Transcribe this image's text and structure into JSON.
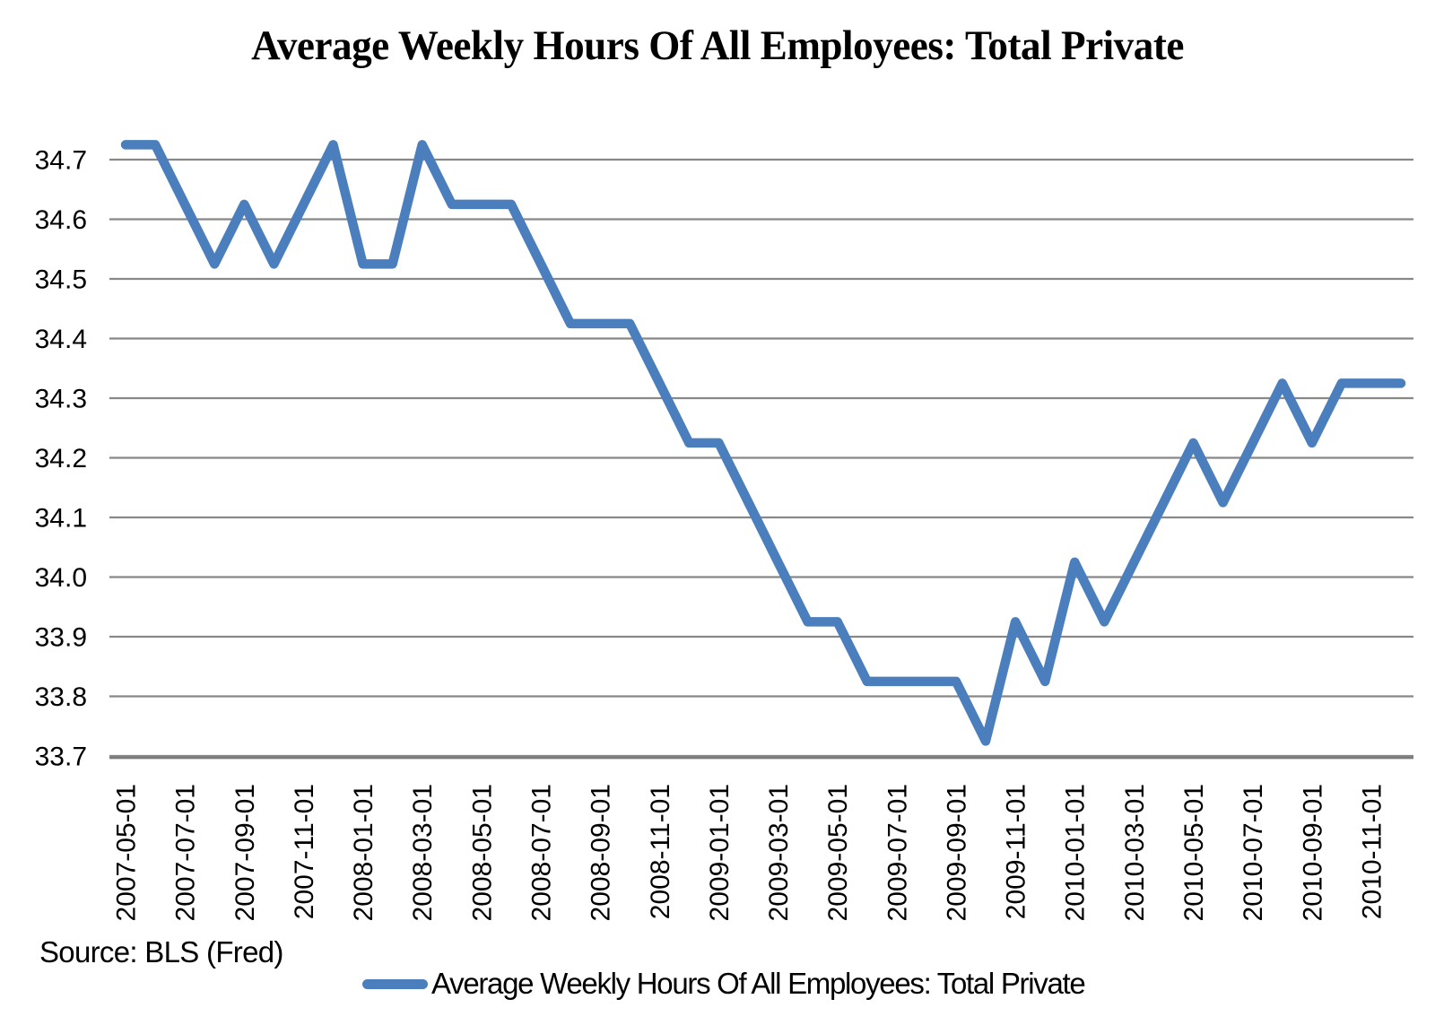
{
  "title": "Average Weekly Hours Of All Employees: Total Private",
  "source_note": "Source: BLS (Fred)",
  "legend": {
    "label": "Average Weekly Hours Of All Employees: Total Private"
  },
  "chart_data": {
    "type": "line",
    "title": "Average Weekly Hours Of All Employees: Total Private",
    "xlabel": "",
    "ylabel": "",
    "x": [
      "2007-05-01",
      "2007-06-01",
      "2007-07-01",
      "2007-08-01",
      "2007-09-01",
      "2007-10-01",
      "2007-11-01",
      "2007-12-01",
      "2008-01-01",
      "2008-02-01",
      "2008-03-01",
      "2008-04-01",
      "2008-05-01",
      "2008-06-01",
      "2008-07-01",
      "2008-08-01",
      "2008-09-01",
      "2008-10-01",
      "2008-11-01",
      "2008-12-01",
      "2009-01-01",
      "2009-02-01",
      "2009-03-01",
      "2009-04-01",
      "2009-05-01",
      "2009-06-01",
      "2009-07-01",
      "2009-08-01",
      "2009-09-01",
      "2009-10-01",
      "2009-11-01",
      "2009-12-01",
      "2010-01-01",
      "2010-02-01",
      "2010-03-01",
      "2010-04-01",
      "2010-05-01",
      "2010-06-01",
      "2010-07-01",
      "2010-08-01",
      "2010-09-01",
      "2010-10-01",
      "2010-11-01",
      "2010-12-01"
    ],
    "values": [
      34.725,
      34.725,
      34.625,
      34.525,
      34.625,
      34.525,
      34.625,
      34.725,
      34.525,
      34.525,
      34.725,
      34.625,
      34.625,
      34.625,
      34.525,
      34.425,
      34.425,
      34.425,
      34.325,
      34.225,
      34.225,
      34.125,
      34.025,
      33.925,
      33.925,
      33.825,
      33.825,
      33.825,
      33.825,
      33.725,
      33.925,
      33.825,
      34.025,
      33.925,
      34.025,
      34.125,
      34.225,
      34.125,
      34.225,
      34.325,
      34.225,
      34.325,
      34.325,
      34.325
    ],
    "series": [
      {
        "name": "Average Weekly Hours Of All Employees: Total Private"
      }
    ],
    "xtick_labels": [
      "2007-05-01",
      "2007-07-01",
      "2007-09-01",
      "2007-11-01",
      "2008-01-01",
      "2008-03-01",
      "2008-05-01",
      "2008-07-01",
      "2008-09-01",
      "2008-11-01",
      "2009-01-01",
      "2009-03-01",
      "2009-05-01",
      "2009-07-01",
      "2009-09-01",
      "2009-11-01",
      "2010-01-01",
      "2010-03-01",
      "2010-05-01",
      "2010-07-01",
      "2010-09-01",
      "2010-11-01"
    ],
    "ytick_labels": [
      "34.7",
      "34.6",
      "34.5",
      "34.4",
      "34.3",
      "34.2",
      "34.1",
      "34.0",
      "33.9",
      "33.8",
      "33.7"
    ],
    "ylim": [
      33.7,
      34.75
    ],
    "grid": "horizontal-only",
    "legend_position": "bottom-center",
    "line_color": "#4b7ebd",
    "gridline_color": "#888888",
    "axisline_color": "#7b7b7b",
    "text_color": "#000000",
    "background_color": "#ffffff"
  }
}
